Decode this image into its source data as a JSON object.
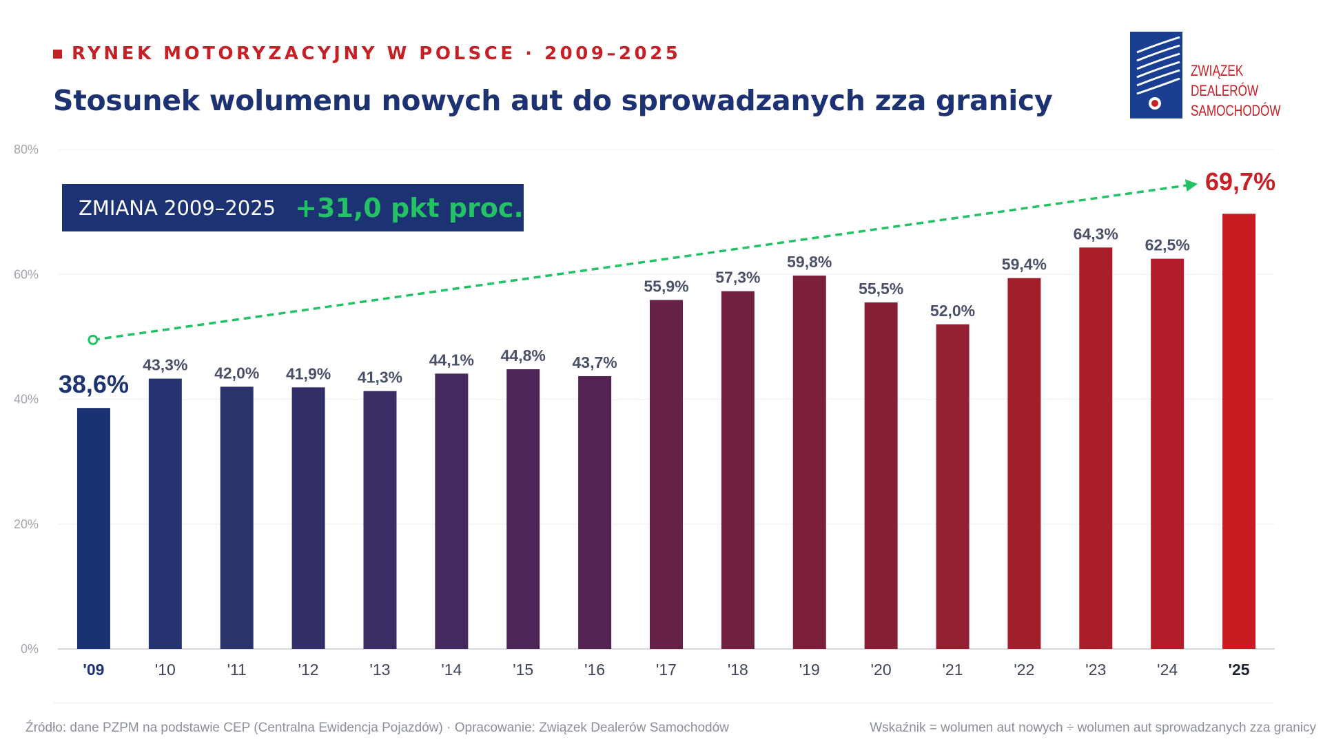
{
  "header": {
    "eyebrow": "RYNEK MOTORYZACYJNY W POLSCE · 2009–2025",
    "title": "Stosunek wolumenu nowych aut do sprowadzanych zza granicy"
  },
  "logo": {
    "line1": "ZWIĄZEK",
    "line2": "DEALERÓW",
    "line3": "SAMOCHODÓW"
  },
  "callout": {
    "label": "ZMIANA 2009–2025",
    "value": "+31,0 pkt proc."
  },
  "footer": {
    "source": "Źródło: dane PZPM na podstawie CEP (Centralna Ewidencja Pojazdów) · Opracowanie: Związek Dealerów Samochodów",
    "note": "Wskaźnik = wolumen aut nowych ÷ wolumen aut sprowadzanych zza granicy"
  },
  "colors": {
    "title": "#1c3272",
    "accent_red": "#c62027",
    "trend_green": "#22c265",
    "callout_bg": "#1c3272"
  },
  "chart_data": {
    "type": "bar",
    "categories": [
      "'09",
      "'10",
      "'11",
      "'12",
      "'13",
      "'14",
      "'15",
      "'16",
      "'17",
      "'18",
      "'19",
      "'20",
      "'21",
      "'22",
      "'23",
      "'24",
      "'25"
    ],
    "values": [
      38.6,
      43.3,
      42.0,
      41.9,
      41.3,
      44.1,
      44.8,
      43.7,
      55.9,
      57.3,
      59.8,
      55.5,
      52.0,
      59.4,
      64.3,
      62.5,
      69.7
    ],
    "value_labels": [
      "38,6%",
      "43,3%",
      "42,0%",
      "41,9%",
      "41,3%",
      "44,1%",
      "44,8%",
      "43,7%",
      "55,9%",
      "57,3%",
      "59,8%",
      "55,5%",
      "52,0%",
      "59,4%",
      "64,3%",
      "62,5%",
      "69,7%"
    ],
    "bar_colors": [
      "#1a3272",
      "#243370",
      "#2b326c",
      "#322f68",
      "#3a2d63",
      "#45285d",
      "#4e2558",
      "#532352",
      "#672146",
      "#72203f",
      "#7c1f3b",
      "#882035",
      "#931f30",
      "#a11f2c",
      "#aa1d2a",
      "#b11c28",
      "#c81b22"
    ],
    "ylim": [
      0,
      80
    ],
    "yticks": [
      0,
      20,
      40,
      60,
      80
    ],
    "ytick_labels": [
      "0%",
      "20%",
      "40%",
      "60%",
      "80%"
    ],
    "grid": true,
    "trend_arrow": {
      "from_category": "'09",
      "to_category": "'25",
      "from_value": 49.5,
      "to_value": 74.5
    }
  }
}
